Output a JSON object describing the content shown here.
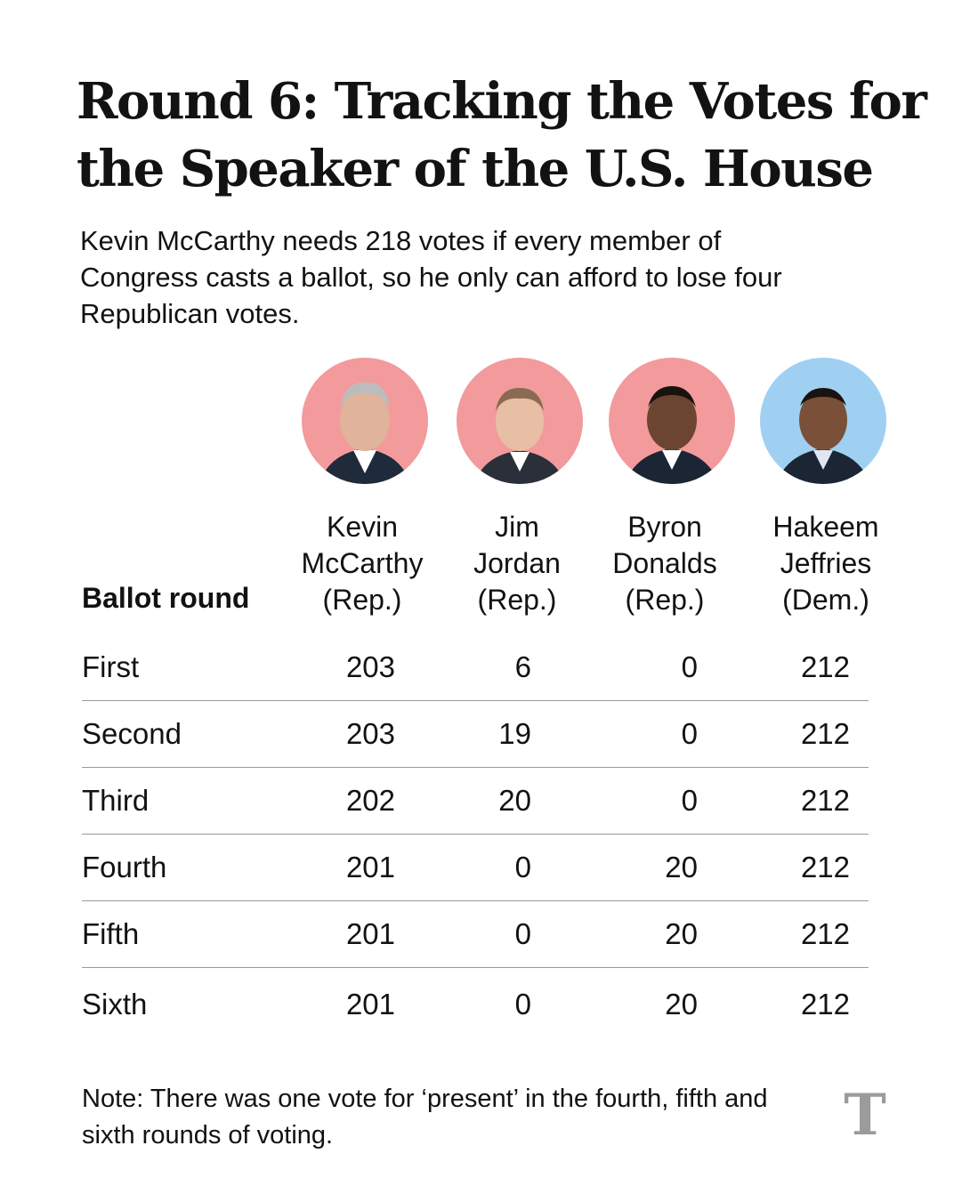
{
  "header": {
    "title": "Round 6: Tracking the Votes for the Speaker of the U.S. House",
    "subtitle": "Kevin McCarthy needs 218 votes if every member of Congress casts a ballot, so he only can afford to lose four Republican votes."
  },
  "colors": {
    "republican_bg": "#f29a9c",
    "democrat_bg": "#9fd0f2",
    "divider": "#9a9a9a"
  },
  "candidates": [
    {
      "first": "Kevin",
      "last": "McCarthy",
      "party": "(Rep.)",
      "photo_icon": "portrait-icon"
    },
    {
      "first": "Jim",
      "last": "Jordan",
      "party": "(Rep.)",
      "photo_icon": "portrait-icon"
    },
    {
      "first": "Byron",
      "last": "Donalds",
      "party": "(Rep.)",
      "photo_icon": "portrait-icon"
    },
    {
      "first": "Hakeem",
      "last": "Jeffries",
      "party": "(Dem.)",
      "photo_icon": "portrait-icon"
    }
  ],
  "chart_data": {
    "type": "table",
    "row_header": "Ballot round",
    "columns": [
      "Kevin McCarthy (Rep.)",
      "Jim Jordan (Rep.)",
      "Byron Donalds (Rep.)",
      "Hakeem Jeffries (Dem.)"
    ],
    "rows": [
      {
        "label": "First",
        "values": [
          "203",
          "6",
          "0",
          "212"
        ]
      },
      {
        "label": "Second",
        "values": [
          "203",
          "19",
          "0",
          "212"
        ]
      },
      {
        "label": "Third",
        "values": [
          "202",
          "20",
          "0",
          "212"
        ]
      },
      {
        "label": "Fourth",
        "values": [
          "201",
          "0",
          "20",
          "212"
        ]
      },
      {
        "label": "Fifth",
        "values": [
          "201",
          "0",
          "20",
          "212"
        ]
      },
      {
        "label": "Sixth",
        "values": [
          "201",
          "0",
          "20",
          "212"
        ]
      }
    ]
  },
  "footer": {
    "note": "Note: There was one vote for ‘present’ in the fourth, fifth and sixth rounds of voting.",
    "logo_icon": "nyt-logo-icon",
    "logo_text": "T"
  }
}
